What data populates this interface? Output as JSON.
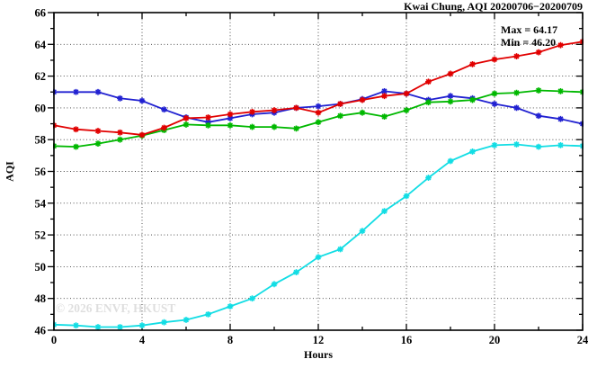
{
  "title": "Kwai Chung, AQI 20200706−20200709",
  "annotation": {
    "max_label": "Max = 64.17",
    "min_label": "Min = 46.20"
  },
  "watermark": "© 2026  ENVF, HKUST",
  "chart_data": {
    "type": "line",
    "title": "Kwai Chung, AQI 20200706−20200709",
    "xlabel": "Hours",
    "ylabel": "AQI",
    "xlim": [
      0,
      24
    ],
    "ylim": [
      46,
      66
    ],
    "xticks": [
      0,
      4,
      8,
      12,
      16,
      20,
      24
    ],
    "xminor_step": 2,
    "yticks": [
      46,
      48,
      50,
      52,
      54,
      56,
      58,
      60,
      62,
      64,
      66
    ],
    "yminor_step": 1,
    "grid": true,
    "legend_position": "none",
    "marker": "asterisk",
    "max": 64.17,
    "min": 46.2,
    "x": [
      0,
      1,
      2,
      3,
      4,
      5,
      6,
      7,
      8,
      9,
      10,
      11,
      12,
      13,
      14,
      15,
      16,
      17,
      18,
      19,
      20,
      21,
      22,
      23,
      24
    ],
    "series": [
      {
        "name": "cyan",
        "color": "#12dde4",
        "values": [
          46.35,
          46.3,
          46.2,
          46.2,
          46.3,
          46.5,
          46.65,
          47.0,
          47.5,
          48.0,
          48.9,
          49.65,
          50.6,
          51.1,
          52.25,
          53.5,
          54.45,
          55.6,
          56.65,
          57.25,
          57.65,
          57.7,
          57.55,
          57.65,
          57.6
        ]
      },
      {
        "name": "blue",
        "color": "#2121d1",
        "values": [
          61.0,
          61.0,
          61.0,
          60.6,
          60.45,
          59.9,
          59.4,
          59.1,
          59.35,
          59.6,
          59.7,
          60.0,
          60.1,
          60.25,
          60.55,
          61.05,
          60.9,
          60.5,
          60.75,
          60.6,
          60.25,
          60.0,
          59.5,
          59.3,
          59.0
        ]
      },
      {
        "name": "green",
        "color": "#00b800",
        "values": [
          57.6,
          57.55,
          57.75,
          58.0,
          58.25,
          58.6,
          58.95,
          58.9,
          58.9,
          58.8,
          58.8,
          58.7,
          59.1,
          59.5,
          59.7,
          59.45,
          59.85,
          60.35,
          60.4,
          60.5,
          60.9,
          60.95,
          61.1,
          61.05,
          61.0
        ]
      },
      {
        "name": "red",
        "color": "#e10000",
        "values": [
          58.9,
          58.65,
          58.55,
          58.45,
          58.3,
          58.75,
          59.35,
          59.4,
          59.6,
          59.75,
          59.85,
          60.0,
          59.7,
          60.25,
          60.5,
          60.75,
          60.9,
          61.65,
          62.15,
          62.75,
          63.05,
          63.25,
          63.5,
          63.95,
          64.17
        ]
      }
    ]
  }
}
